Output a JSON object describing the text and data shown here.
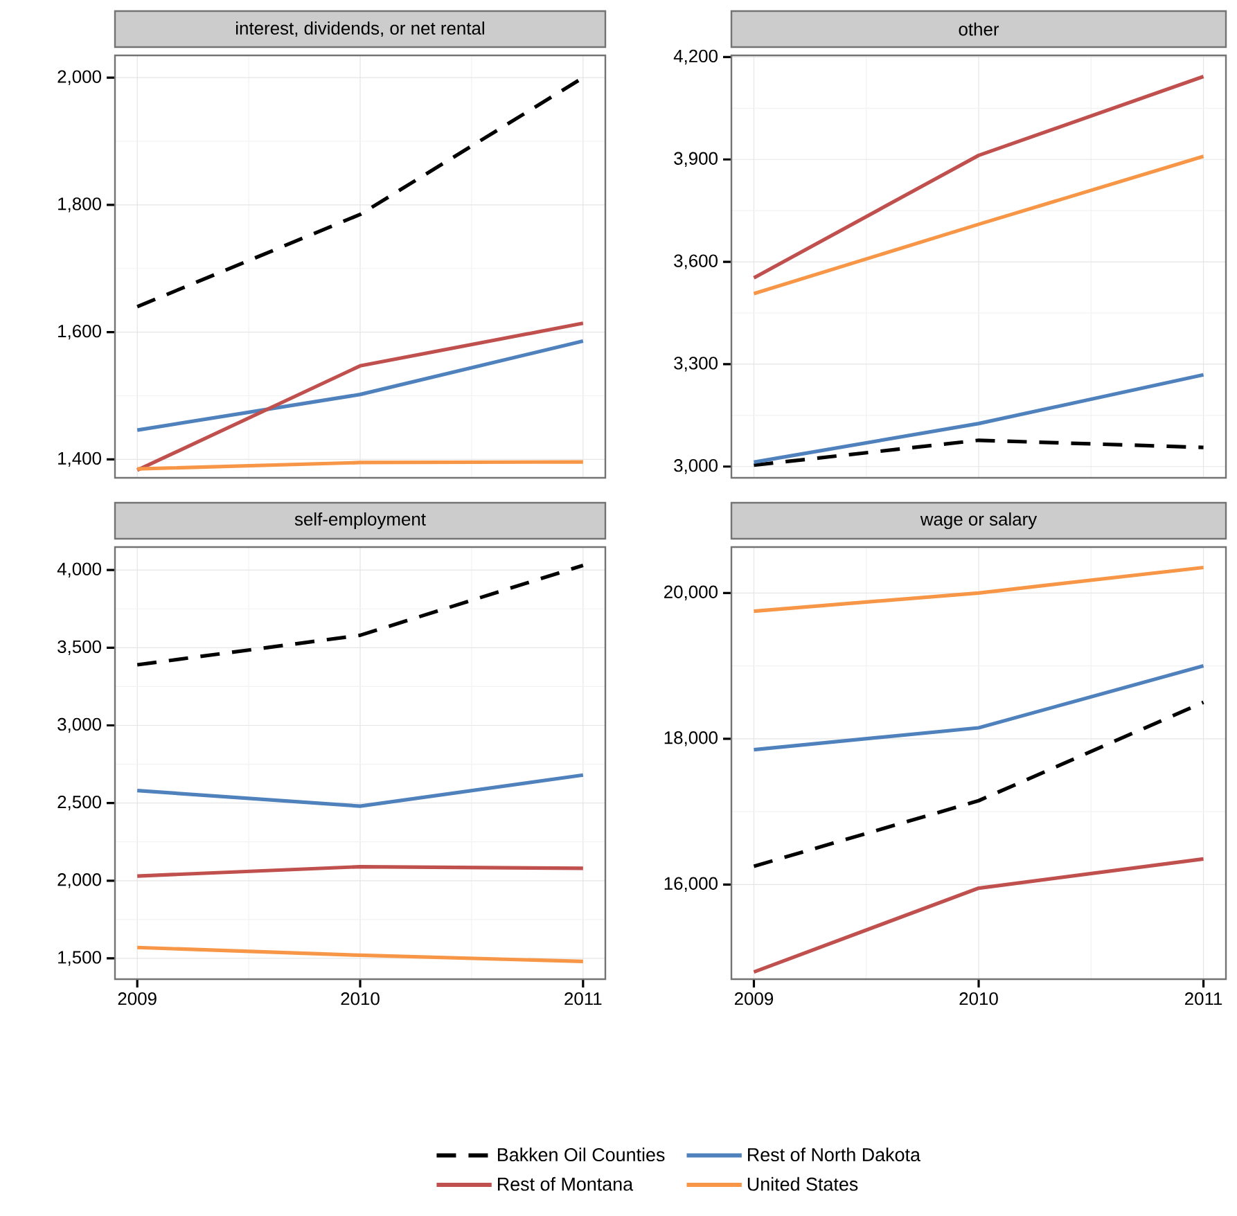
{
  "chart_data": [
    {
      "type": "line",
      "title": "interest, dividends, or net rental",
      "x": [
        2009,
        2010,
        2011
      ],
      "xlim": [
        2008.9,
        2011.1
      ],
      "xticks": [
        2009,
        2010,
        2011
      ],
      "ylim": [
        1371,
        2035
      ],
      "yticks": [
        {
          "value": 1400,
          "label": "1,400"
        },
        {
          "value": 1600,
          "label": "1,600"
        },
        {
          "value": 1800,
          "label": "1,800"
        },
        {
          "value": 2000,
          "label": "2,000"
        }
      ],
      "grid": true,
      "tick_labels": "y",
      "legend": "bottom",
      "series": [
        {
          "name": "Bakken Oil Counties",
          "color": "#000000",
          "line_style": "dashed",
          "values": [
            1640,
            1785,
            2000
          ]
        },
        {
          "name": "Rest of North Dakota",
          "color": "#4f81bd",
          "values": [
            1446,
            1502,
            1586
          ]
        },
        {
          "name": "Rest of Montana",
          "color": "#c0504d",
          "values": [
            1383,
            1547,
            1614
          ]
        },
        {
          "name": "United States",
          "color": "#f79646",
          "values": [
            1385,
            1395,
            1396
          ]
        }
      ]
    },
    {
      "type": "line",
      "title": "other",
      "x": [
        2009,
        2010,
        2011
      ],
      "xlim": [
        2008.9,
        2011.1
      ],
      "xticks": [
        2009,
        2010,
        2011
      ],
      "ylim": [
        2967,
        4205
      ],
      "yticks": [
        {
          "value": 3000,
          "label": "3,000"
        },
        {
          "value": 3300,
          "label": "3,300"
        },
        {
          "value": 3600,
          "label": "3,600"
        },
        {
          "value": 3900,
          "label": "3,900"
        },
        {
          "value": 4200,
          "label": "4,200"
        }
      ],
      "grid": true,
      "tick_labels": "y",
      "series": [
        {
          "color": "#000000",
          "line_style": "dashed",
          "values": [
            3004,
            3077,
            3056
          ]
        },
        {
          "color": "#4f81bd",
          "values": [
            3013,
            3126,
            3269
          ]
        },
        {
          "color": "#c0504d",
          "values": [
            3553,
            3912,
            4143
          ]
        },
        {
          "color": "#f79646",
          "values": [
            3507,
            3710,
            3909
          ]
        }
      ]
    },
    {
      "type": "line",
      "title": "self-employment",
      "x": [
        2009,
        2010,
        2011
      ],
      "xlim": [
        2008.9,
        2011.1
      ],
      "xticks": [
        2009,
        2010,
        2011
      ],
      "ylim": [
        1366,
        4148
      ],
      "yticks": [
        {
          "value": 1500,
          "label": "1,500"
        },
        {
          "value": 2000,
          "label": "2,000"
        },
        {
          "value": 2500,
          "label": "2,500"
        },
        {
          "value": 3000,
          "label": "3,000"
        },
        {
          "value": 3500,
          "label": "3,500"
        },
        {
          "value": 4000,
          "label": "4,000"
        }
      ],
      "grid": true,
      "series": [
        {
          "color": "#000000",
          "line_style": "dashed",
          "values": [
            3390,
            3580,
            4030
          ]
        },
        {
          "color": "#4f81bd",
          "values": [
            2580,
            2480,
            2680
          ]
        },
        {
          "color": "#c0504d",
          "values": [
            2030,
            2090,
            2080
          ]
        },
        {
          "color": "#f79646",
          "values": [
            1570,
            1520,
            1480
          ]
        }
      ]
    },
    {
      "type": "line",
      "title": "wage or salary",
      "x": [
        2009,
        2010,
        2011
      ],
      "xlim": [
        2008.9,
        2011.1
      ],
      "xticks": [
        2009,
        2010,
        2011
      ],
      "ylim": [
        14701,
        20630
      ],
      "yticks": [
        {
          "value": 16000,
          "label": "16,000"
        },
        {
          "value": 18000,
          "label": "18,000"
        },
        {
          "value": 20000,
          "label": "20,000"
        }
      ],
      "grid": true,
      "series": [
        {
          "color": "#000000",
          "line_style": "dashed",
          "values": [
            16250,
            17150,
            18500
          ]
        },
        {
          "color": "#4f81bd",
          "values": [
            17850,
            18150,
            19000
          ]
        },
        {
          "color": "#c0504d",
          "values": [
            14800,
            15950,
            16350
          ]
        },
        {
          "color": "#f79646",
          "values": [
            19750,
            20000,
            20350
          ]
        }
      ]
    }
  ]
}
